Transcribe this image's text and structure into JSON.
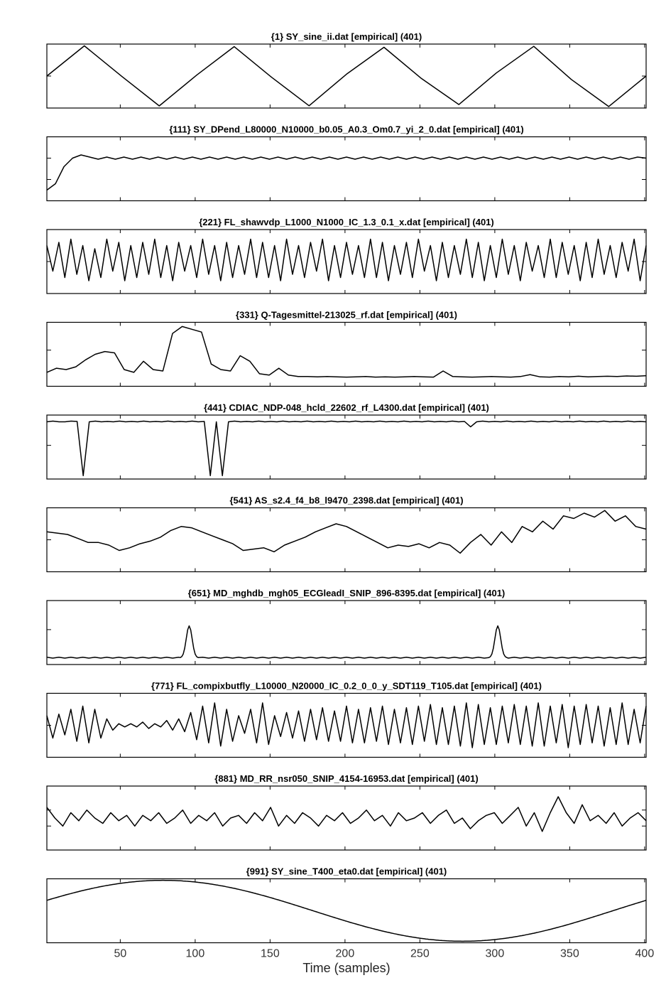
{
  "chart_data": {
    "type": "line",
    "xlabel": "Time (samples)",
    "xlim": [
      1,
      401
    ],
    "x_ticks": [
      50,
      100,
      150,
      200,
      250,
      300,
      350,
      400
    ],
    "panels": [
      {
        "title": "{1} SY_sine_ii.dat [empirical] (401)",
        "ylim": [
          -1.05,
          1.05
        ],
        "yticks": [
          0
        ],
        "values": [
          0.0,
          0.991,
          -0.01,
          -0.981,
          0.03,
          0.966,
          -0.039,
          -0.975,
          0.06,
          0.945,
          -0.08,
          -0.935,
          0.1,
          0.975,
          -0.11,
          -1.0,
          0.0
        ]
      },
      {
        "title": "{111} SY_DPend_L80000_N10000_b0.05_A0.3_Om0.7_yi_2_0.dat [empirical] (401)",
        "ylim": [
          -2.0,
          1.0
        ],
        "yticks": [
          0,
          -1
        ],
        "values": [
          -1.5,
          -1.2,
          -0.4,
          0.0,
          0.15,
          0.05,
          -0.05,
          0.05,
          -0.05,
          0.05,
          -0.05,
          0.05,
          -0.05,
          0.05,
          -0.05,
          0.05,
          -0.05,
          0.05,
          -0.05,
          0.05,
          -0.05,
          0.05,
          -0.05,
          0.05,
          -0.05,
          0.05,
          -0.05,
          0.05,
          -0.05,
          0.05,
          -0.05,
          0.05,
          -0.05,
          0.05,
          -0.05,
          0.05,
          -0.05,
          0.05,
          -0.05,
          0.05,
          -0.05,
          0.05,
          -0.05,
          0.05,
          -0.05,
          0.05,
          -0.05,
          0.05,
          -0.05,
          0.05,
          -0.05,
          0.05,
          -0.05,
          0.05,
          -0.05,
          0.05,
          -0.05,
          0.05,
          -0.05,
          0.05,
          -0.05,
          0.05,
          -0.05,
          0.05,
          -0.05,
          0.05,
          -0.05,
          0.05,
          -0.05,
          0.05,
          0.0
        ]
      },
      {
        "title": "{221} FL_shawvdp_L1000_N1000_IC_1.3_0.1_x.dat [empirical] (401)",
        "ylim": [
          -1.0,
          1.0
        ],
        "yticks": [
          0
        ],
        "values": [
          0.5,
          -0.3,
          0.6,
          -0.5,
          0.7,
          -0.4,
          0.5,
          -0.6,
          0.4,
          -0.5,
          0.7,
          -0.3,
          0.6,
          -0.6,
          0.5,
          -0.5,
          0.6,
          -0.4,
          0.7,
          -0.5,
          0.5,
          -0.6,
          0.6,
          -0.3,
          0.5,
          -0.5,
          0.7,
          -0.4,
          0.5,
          -0.6,
          0.6,
          -0.5,
          0.5,
          -0.4,
          0.7,
          -0.5,
          0.6,
          -0.5,
          0.5,
          -0.6,
          0.7,
          -0.4,
          0.5,
          -0.5,
          0.6,
          -0.3,
          0.7,
          -0.6,
          0.5,
          -0.5,
          0.6,
          -0.4,
          0.5,
          -0.5,
          0.7,
          -0.5,
          0.6,
          -0.6,
          0.5,
          -0.4,
          0.6,
          -0.5,
          0.7,
          -0.3,
          0.5,
          -0.6,
          0.6,
          -0.5,
          0.5,
          -0.4,
          0.7,
          -0.5,
          0.6,
          -0.6,
          0.5,
          -0.5,
          0.7,
          -0.4,
          0.5,
          -0.6,
          0.6,
          -0.3,
          0.5,
          -0.5,
          0.7,
          -0.5,
          0.6,
          -0.4,
          0.5,
          -0.6,
          0.6,
          -0.5,
          0.7,
          -0.4,
          0.5,
          -0.5,
          0.6,
          -0.3,
          0.7,
          -0.6,
          0.5
        ]
      },
      {
        "title": "{331} Q-Tagesmittel-213025_rf.dat [empirical] (401)",
        "ylim": [
          -0.3,
          2.0
        ],
        "yticks": [
          1
        ],
        "values": [
          0.2,
          0.35,
          0.3,
          0.4,
          0.65,
          0.85,
          0.95,
          0.9,
          0.3,
          0.2,
          0.6,
          0.3,
          0.25,
          1.6,
          1.85,
          1.75,
          1.65,
          0.5,
          0.3,
          0.25,
          0.8,
          0.6,
          0.15,
          0.1,
          0.35,
          0.1,
          0.05,
          0.05,
          0.04,
          0.05,
          0.04,
          0.03,
          0.04,
          0.05,
          0.03,
          0.04,
          0.03,
          0.04,
          0.05,
          0.04,
          0.03,
          0.25,
          0.05,
          0.04,
          0.03,
          0.04,
          0.05,
          0.04,
          0.03,
          0.05,
          0.12,
          0.04,
          0.03,
          0.05,
          0.04,
          0.06,
          0.04,
          0.05,
          0.06,
          0.05,
          0.07,
          0.06,
          0.08
        ]
      },
      {
        "title": "{441} CDIAC_NDP-048_hcld_22602_rf_L4300.dat [empirical] (401)",
        "ylim": [
          -1.6,
          0.3
        ],
        "yticks": [
          -0.6
        ],
        "values": [
          0.1,
          0.12,
          0.1,
          0.1,
          0.12,
          0.11,
          -1.5,
          0.1,
          0.12,
          0.1,
          0.11,
          0.1,
          0.12,
          0.1,
          0.11,
          0.1,
          0.12,
          0.1,
          0.11,
          0.1,
          0.12,
          0.1,
          0.11,
          0.1,
          0.12,
          0.1,
          0.11,
          -1.5,
          0.1,
          -1.5,
          0.1,
          0.12,
          0.1,
          0.11,
          0.1,
          0.12,
          0.1,
          0.11,
          0.1,
          0.12,
          0.1,
          0.11,
          0.1,
          0.12,
          0.1,
          0.11,
          0.1,
          0.12,
          0.1,
          0.11,
          0.1,
          0.12,
          0.1,
          0.11,
          0.1,
          0.12,
          0.1,
          0.11,
          0.1,
          0.12,
          0.1,
          0.11,
          0.1,
          0.12,
          0.1,
          0.11,
          0.1,
          0.12,
          0.1,
          0.11,
          -0.05,
          0.1,
          0.12,
          0.1,
          0.11,
          0.1,
          0.12,
          0.1,
          0.11,
          0.1,
          0.12,
          0.1,
          0.11,
          0.1,
          0.12,
          0.1,
          0.11,
          0.1,
          0.12,
          0.1,
          0.11,
          0.1,
          0.12,
          0.1,
          0.11,
          0.1,
          0.12,
          0.1,
          0.11,
          0.1
        ]
      },
      {
        "title": "{541} AS_s2.4_f4_b8_l9470_2398.dat [empirical] (401)",
        "ylim": [
          -1.2,
          1.2
        ],
        "yticks": [
          0
        ],
        "values": [
          0.3,
          0.25,
          0.2,
          0.05,
          -0.1,
          -0.1,
          -0.2,
          -0.4,
          -0.3,
          -0.15,
          -0.05,
          0.1,
          0.35,
          0.5,
          0.45,
          0.3,
          0.15,
          0.0,
          -0.15,
          -0.4,
          -0.35,
          -0.3,
          -0.45,
          -0.2,
          -0.05,
          0.1,
          0.3,
          0.45,
          0.6,
          0.5,
          0.3,
          0.1,
          -0.1,
          -0.3,
          -0.2,
          -0.25,
          -0.15,
          -0.3,
          -0.1,
          -0.2,
          -0.5,
          -0.1,
          0.2,
          -0.2,
          0.3,
          -0.1,
          0.5,
          0.3,
          0.7,
          0.4,
          0.9,
          0.8,
          1.0,
          0.85,
          1.1,
          0.7,
          0.9,
          0.5,
          0.4
        ]
      },
      {
        "title": "{651} MD_mghdb_mgh05_ECGleadI_SNIP_896-8395.dat [empirical] (401)",
        "ylim": [
          -0.2,
          2.0
        ],
        "yticks": [
          1
        ],
        "values": [
          0.05,
          0.02,
          0.05,
          0.02,
          0.05,
          0.02,
          0.05,
          0.02,
          0.05,
          0.02,
          0.05,
          0.02,
          0.05,
          0.02,
          0.05,
          0.02,
          0.05,
          0.02,
          0.05,
          0.02,
          0.05,
          0.02,
          0.05,
          0.02,
          0.05,
          0.02,
          0.05,
          0.02,
          0.05,
          0.02,
          0.05,
          0.02,
          0.05,
          0.02,
          0.05,
          0.02,
          0.05,
          0.02,
          0.05,
          0.02,
          0.05,
          0.02,
          0.05,
          0.02,
          0.05,
          0.02,
          0.05,
          0.02,
          0.05,
          0.02,
          0.05,
          0.02,
          0.05,
          0.02,
          0.05,
          0.02,
          0.05,
          0.02,
          0.05,
          0.02,
          0.05,
          0.02,
          0.05,
          0.02,
          0.05,
          0.02,
          0.05,
          0.02,
          0.05,
          0.02,
          0.05,
          0.02,
          0.05,
          0.02,
          0.05,
          0.02,
          0.05,
          0.02,
          0.05,
          0.02,
          0.05,
          0.02,
          0.05,
          0.02,
          0.05,
          0.02,
          0.05,
          0.02,
          0.05,
          0.02,
          0.05,
          0.02,
          0.05,
          0.02,
          0.05,
          0.02,
          0.05,
          0.02,
          0.05,
          0.02,
          0.05
        ],
        "peaks": [
          [
            96,
            1.1
          ],
          [
            302,
            1.1
          ]
        ]
      },
      {
        "title": "{771} FL_compixbutfly_L10000_N20000_IC_0.2_0_0_y_SDT119_T105.dat [empirical] (401)",
        "ylim": [
          -1.0,
          1.0
        ],
        "yticks": [
          0
        ],
        "values": [
          0.3,
          -0.4,
          0.35,
          -0.3,
          0.5,
          -0.5,
          0.6,
          -0.55,
          0.5,
          -0.4,
          0.2,
          -0.15,
          0.05,
          -0.05,
          0.05,
          -0.05,
          0.1,
          -0.1,
          0.05,
          -0.05,
          0.15,
          -0.15,
          0.2,
          -0.2,
          0.4,
          -0.45,
          0.6,
          -0.55,
          0.7,
          -0.65,
          0.5,
          -0.5,
          0.3,
          -0.25,
          0.5,
          -0.55,
          0.7,
          -0.6,
          0.3,
          -0.35,
          0.4,
          -0.4,
          0.45,
          -0.5,
          0.5,
          -0.45,
          0.55,
          -0.5,
          0.45,
          -0.5,
          0.6,
          -0.55,
          0.5,
          -0.55,
          0.55,
          -0.5,
          0.6,
          -0.6,
          0.5,
          -0.55,
          0.55,
          -0.6,
          0.6,
          -0.5,
          0.65,
          -0.6,
          0.55,
          -0.6,
          0.6,
          -0.65,
          0.7,
          -0.7,
          0.65,
          -0.6,
          0.55,
          -0.6,
          0.6,
          -0.55,
          0.65,
          -0.6,
          0.6,
          -0.65,
          0.7,
          -0.65,
          0.6,
          -0.55,
          0.65,
          -0.7,
          0.6,
          -0.6,
          0.65,
          -0.55,
          0.6,
          -0.65,
          0.55,
          -0.6,
          0.7,
          -0.6,
          0.5,
          -0.55,
          0.6
        ]
      },
      {
        "title": "{881} MD_RR_nsr050_SNIP_4154-16953.dat [empirical] (401)",
        "ylim": [
          -1.2,
          1.2
        ],
        "yticks": [
          0.3,
          -0.3
        ],
        "values": [
          0.4,
          0.0,
          -0.3,
          0.2,
          -0.1,
          0.3,
          0.0,
          -0.2,
          0.2,
          -0.1,
          0.1,
          -0.3,
          0.1,
          -0.1,
          0.2,
          -0.2,
          0.0,
          0.3,
          -0.2,
          0.1,
          -0.1,
          0.2,
          -0.3,
          0.0,
          0.1,
          -0.2,
          0.2,
          -0.1,
          0.4,
          -0.3,
          0.1,
          -0.2,
          0.2,
          0.0,
          -0.3,
          0.1,
          -0.1,
          0.2,
          -0.2,
          0.0,
          0.3,
          -0.1,
          0.1,
          -0.3,
          0.2,
          -0.1,
          0.0,
          0.2,
          -0.2,
          0.1,
          0.3,
          -0.2,
          0.0,
          -0.4,
          -0.1,
          0.1,
          0.2,
          -0.2,
          0.1,
          0.4,
          -0.3,
          0.2,
          -0.5,
          0.2,
          0.8,
          0.2,
          -0.2,
          0.5,
          -0.1,
          0.1,
          -0.2,
          0.2,
          -0.3,
          0.0,
          0.2,
          -0.1
        ]
      },
      {
        "title": "{991} SY_sine_T400_eta0.dat [empirical] (401)",
        "ylim": [
          -1.05,
          1.05
        ],
        "yticks": [],
        "sine_period": 400
      }
    ]
  }
}
